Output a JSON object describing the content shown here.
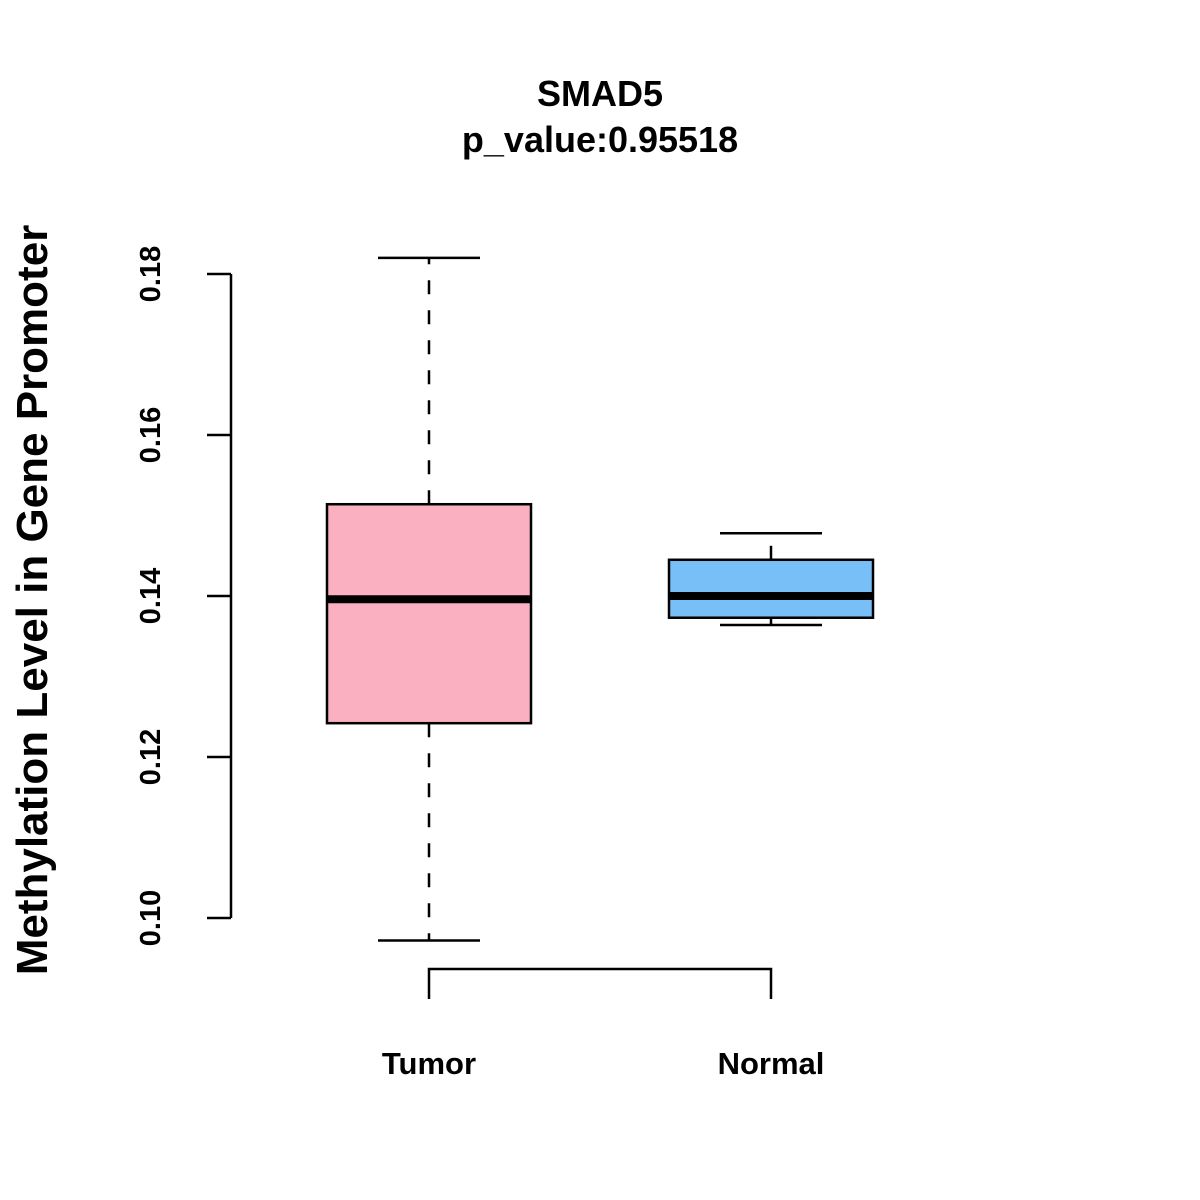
{
  "chart_data": {
    "type": "boxplot",
    "title": "SMAD5",
    "subtitle": "p_value:0.95518",
    "xlabel": "",
    "ylabel": "Methylation Level in Gene Promoter",
    "ylim": [
      0.1,
      0.18
    ],
    "yticks": [
      {
        "value": 0.1,
        "label": "0.10"
      },
      {
        "value": 0.12,
        "label": "0.12"
      },
      {
        "value": 0.14,
        "label": "0.14"
      },
      {
        "value": 0.16,
        "label": "0.16"
      },
      {
        "value": 0.18,
        "label": "0.18"
      }
    ],
    "grid": false,
    "categories": [
      "Tumor",
      "Normal"
    ],
    "boxes": [
      {
        "name": "Tumor",
        "min": 0.0972,
        "q1": 0.1242,
        "median": 0.1396,
        "q3": 0.1514,
        "max": 0.182,
        "color": "#fbb0c2"
      },
      {
        "name": "Normal",
        "min": 0.1364,
        "q1": 0.1373,
        "median": 0.14,
        "q3": 0.1445,
        "max": 0.1478,
        "color": "#78bff7"
      }
    ],
    "comparison_bracket": [
      "Tumor",
      "Normal"
    ]
  }
}
